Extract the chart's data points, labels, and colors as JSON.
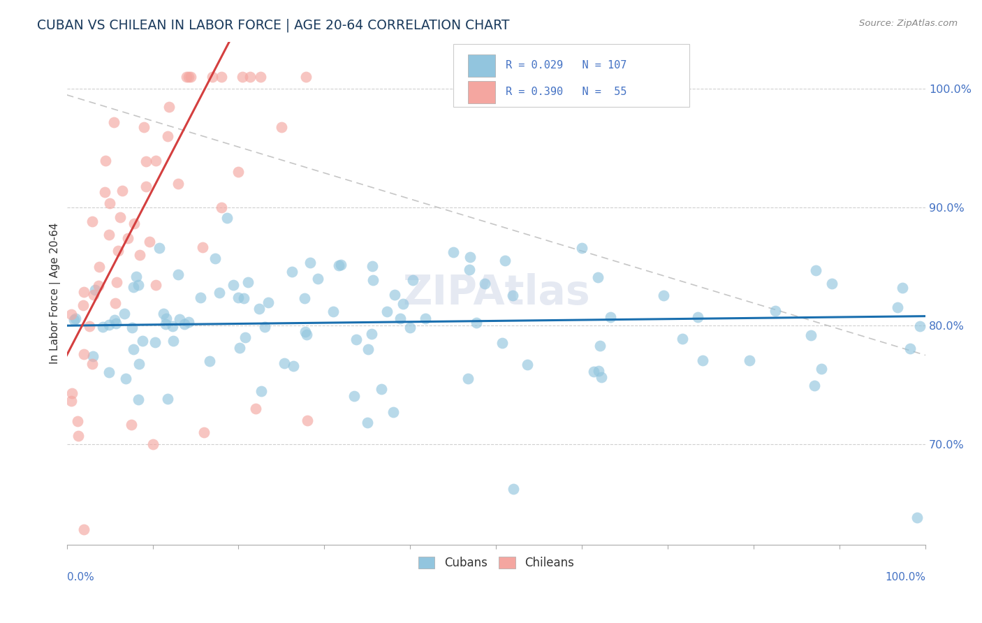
{
  "title": "CUBAN VS CHILEAN IN LABOR FORCE | AGE 20-64 CORRELATION CHART",
  "source": "Source: ZipAtlas.com",
  "ylabel": "In Labor Force | Age 20-64",
  "cuban_color": "#92c5de",
  "chilean_color": "#f4a6a0",
  "cuban_line_color": "#1a6faf",
  "chilean_line_color": "#d43f3f",
  "watermark": "ZIPAtlas",
  "tick_color": "#4472c4",
  "title_color": "#1a3a5c",
  "ytick_positions": [
    0.7,
    0.8,
    0.9,
    1.0
  ],
  "ytick_labels": [
    "70.0%",
    "80.0%",
    "90.0%",
    "100.0%"
  ],
  "xrange": [
    0.0,
    1.0
  ],
  "yrange": [
    0.615,
    1.04
  ]
}
